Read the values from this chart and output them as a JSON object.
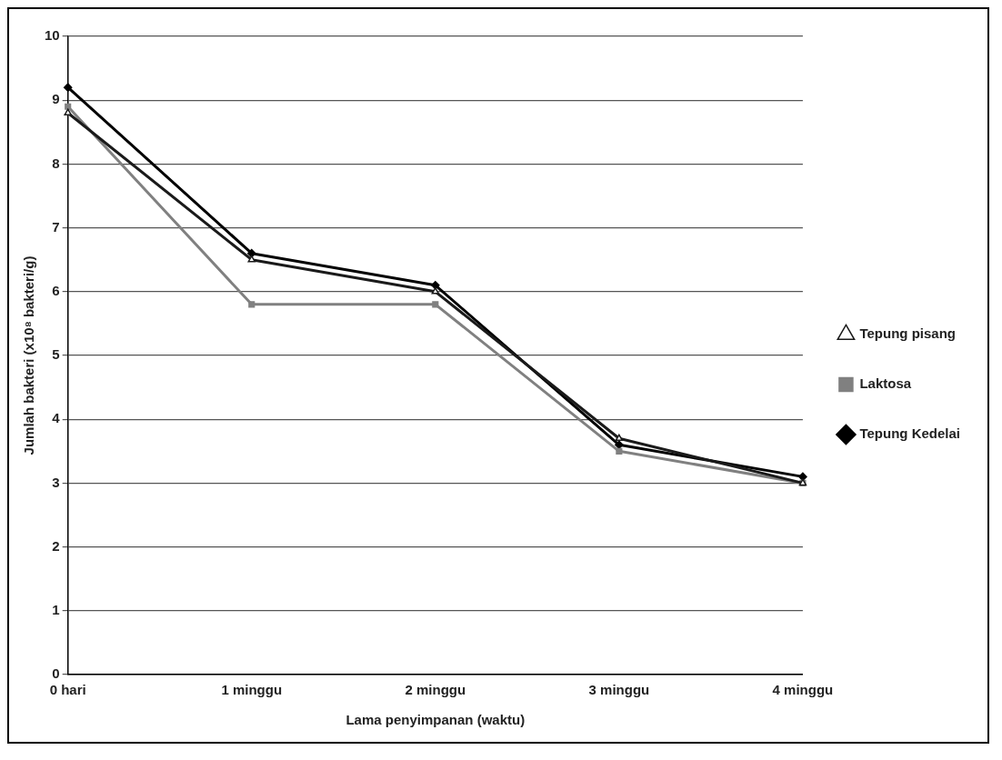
{
  "chart_data": {
    "type": "line",
    "xlabel": "Lama penyimpanan (waktu)",
    "ylabel": "Jumlah bakteri (x10⁸ bakteri/g)",
    "categories": [
      "0 hari",
      "1 minggu",
      "2 minggu",
      "3 minggu",
      "4 minggu"
    ],
    "series": [
      {
        "name": "Tepung Kedelai",
        "color": "#000000",
        "marker": "diamond",
        "values": [
          9.2,
          6.6,
          6.1,
          3.6,
          3.1
        ]
      },
      {
        "name": "Laktosa",
        "color": "#808080",
        "marker": "square",
        "values": [
          8.9,
          5.8,
          5.8,
          3.5,
          3.0
        ]
      },
      {
        "name": "Tepung pisang",
        "color": "#1a1a1a",
        "marker": "triangle",
        "values": [
          8.8,
          6.5,
          6.0,
          3.7,
          3.0
        ]
      }
    ],
    "ylim": [
      0,
      10
    ],
    "yticks": [
      0,
      1,
      2,
      3,
      4,
      5,
      6,
      7,
      8,
      9,
      10
    ],
    "grid": "y",
    "legend": "right",
    "line_style": "solid"
  }
}
